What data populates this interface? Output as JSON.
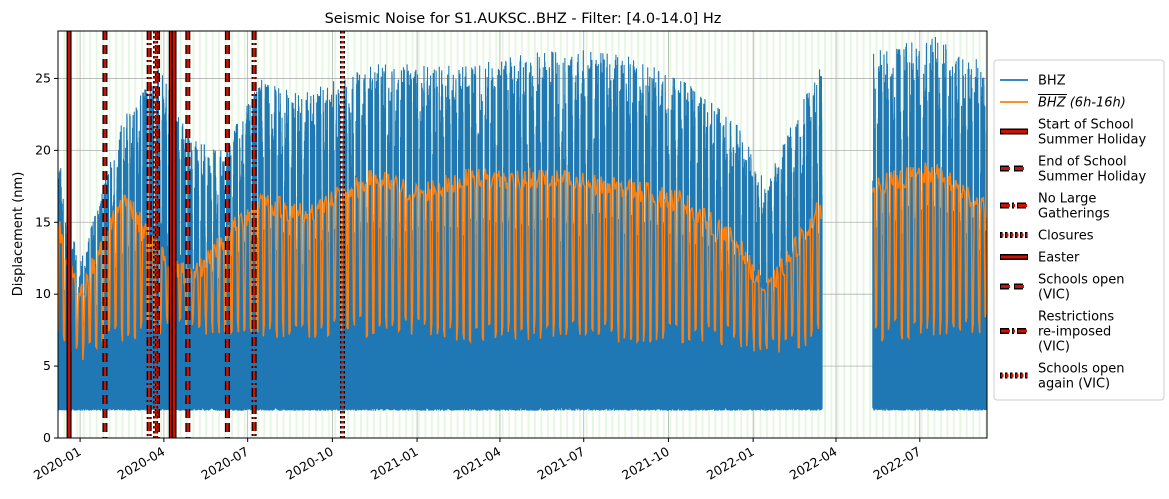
{
  "chart_data": {
    "type": "line",
    "title": "Seismic Noise for S1.AUKSC..BHZ - Filter: [4.0-14.0] Hz",
    "xlabel": "",
    "ylabel": "Displacement (nm)",
    "xlim": [
      "2019-12-08",
      "2022-09-12"
    ],
    "ylim": [
      0,
      28.3
    ],
    "grid": true,
    "legend_position": "right-outside",
    "x_ticks": [
      "2020-01",
      "2020-04",
      "2020-07",
      "2020-10",
      "2021-01",
      "2021-04",
      "2021-07",
      "2021-10",
      "2022-01",
      "2022-04",
      "2022-07"
    ],
    "y_ticks": [
      "0",
      "5",
      "10",
      "15",
      "20",
      "25"
    ],
    "data_gaps": [
      [
        "2022-03-17",
        "2022-05-11"
      ]
    ],
    "series": [
      {
        "name": "BHZ",
        "color": "#1f77b4",
        "style": "dense high-frequency trace",
        "baseline_floor": 2.2,
        "envelope_by_date": {
          "x": [
            "2019-12-08",
            "2019-12-31",
            "2020-02-15",
            "2020-03-25",
            "2020-04-30",
            "2020-06-01",
            "2020-07-15",
            "2020-09-01",
            "2020-11-15",
            "2021-01-01",
            "2021-03-01",
            "2021-05-15",
            "2021-08-01",
            "2021-10-15",
            "2021-12-15",
            "2022-01-15",
            "2022-03-15",
            "2022-05-15",
            "2022-07-15",
            "2022-09-12"
          ],
          "upper": [
            20,
            12,
            22,
            26,
            21,
            20,
            25,
            24,
            26,
            26,
            26,
            27,
            27,
            25,
            22,
            18,
            26,
            27,
            28,
            26
          ]
        }
      },
      {
        "name": "BHZ (6h-16h)",
        "color": "#ff7f0e",
        "style": "daily daytime mean, weekly oscillation",
        "weekday_level_by_date": {
          "x": [
            "2019-12-08",
            "2019-12-31",
            "2020-02-15",
            "2020-03-25",
            "2020-04-30",
            "2020-06-01",
            "2020-07-15",
            "2020-09-01",
            "2020-11-15",
            "2021-01-01",
            "2021-03-01",
            "2021-05-15",
            "2021-08-01",
            "2021-10-15",
            "2021-12-15",
            "2022-01-15",
            "2022-03-15",
            "2022-05-15",
            "2022-07-15",
            "2022-09-12"
          ],
          "y": [
            15,
            9.5,
            17,
            13,
            11,
            13.5,
            16.5,
            15.5,
            18,
            17,
            18,
            18,
            17.5,
            16.5,
            13.5,
            10,
            16,
            17.5,
            18.5,
            16
          ]
        },
        "weekend_level_by_date": {
          "x": [
            "2019-12-08",
            "2019-12-31",
            "2020-02-15",
            "2020-03-25",
            "2020-04-30",
            "2020-06-01",
            "2020-07-15",
            "2020-09-01",
            "2020-11-15",
            "2021-01-01",
            "2021-03-01",
            "2021-05-15",
            "2021-08-01",
            "2021-10-15",
            "2021-12-15",
            "2022-01-15",
            "2022-03-15",
            "2022-05-15",
            "2022-07-15",
            "2022-09-12"
          ],
          "y": [
            7.5,
            6,
            7.5,
            8,
            7.8,
            8,
            7.8,
            7.5,
            7.8,
            7.8,
            7.5,
            7.6,
            7.4,
            7.4,
            7.2,
            6.5,
            7.3,
            7.5,
            7.8,
            8
          ]
        }
      }
    ],
    "events": [
      {
        "name": "Start of School Summer Holiday",
        "style": "solid",
        "dates": [
          "2019-12-20",
          "2020-04-09"
        ]
      },
      {
        "name": "End of School Summer Holiday",
        "style": "dashed",
        "dates": [
          "2020-01-28",
          "2020-03-25",
          "2020-04-27"
        ]
      },
      {
        "name": "No Large Gatherings",
        "style": "dashdot",
        "dates": [
          "2020-03-16"
        ]
      },
      {
        "name": "Closures",
        "style": "dotted",
        "dates": [
          "2020-03-23"
        ]
      },
      {
        "name": "Easter",
        "style": "solid",
        "dates": [
          "2020-04-12"
        ]
      },
      {
        "name": "Schools open (VIC)",
        "style": "dashed",
        "dates": [
          "2020-06-09"
        ]
      },
      {
        "name": "Restrictions re-imposed (VIC)",
        "style": "dashdot",
        "dates": [
          "2020-07-08"
        ]
      },
      {
        "name": "Schools open again (VIC)",
        "style": "dotted",
        "dates": [
          "2020-10-12"
        ]
      }
    ]
  },
  "legend": [
    {
      "lines": [
        "BHZ"
      ],
      "kind": "line",
      "color": "#1f77b4"
    },
    {
      "lines": [
        "BHZ (6h-16h)"
      ],
      "kind": "line-bar",
      "color": "#ff7f0e"
    },
    {
      "lines": [
        "Start of School",
        "Summer Holiday"
      ],
      "kind": "solid"
    },
    {
      "lines": [
        "End of School",
        "Summer Holiday"
      ],
      "kind": "dashed"
    },
    {
      "lines": [
        "No Large",
        "Gatherings"
      ],
      "kind": "dashdot"
    },
    {
      "lines": [
        "Closures"
      ],
      "kind": "dotted"
    },
    {
      "lines": [
        "Easter"
      ],
      "kind": "solid"
    },
    {
      "lines": [
        "Schools open",
        "(VIC)"
      ],
      "kind": "dashed"
    },
    {
      "lines": [
        "Restrictions",
        "re-imposed",
        "(VIC)"
      ],
      "kind": "dashdot"
    },
    {
      "lines": [
        "Schools open",
        "again (VIC)"
      ],
      "kind": "dotted"
    }
  ]
}
